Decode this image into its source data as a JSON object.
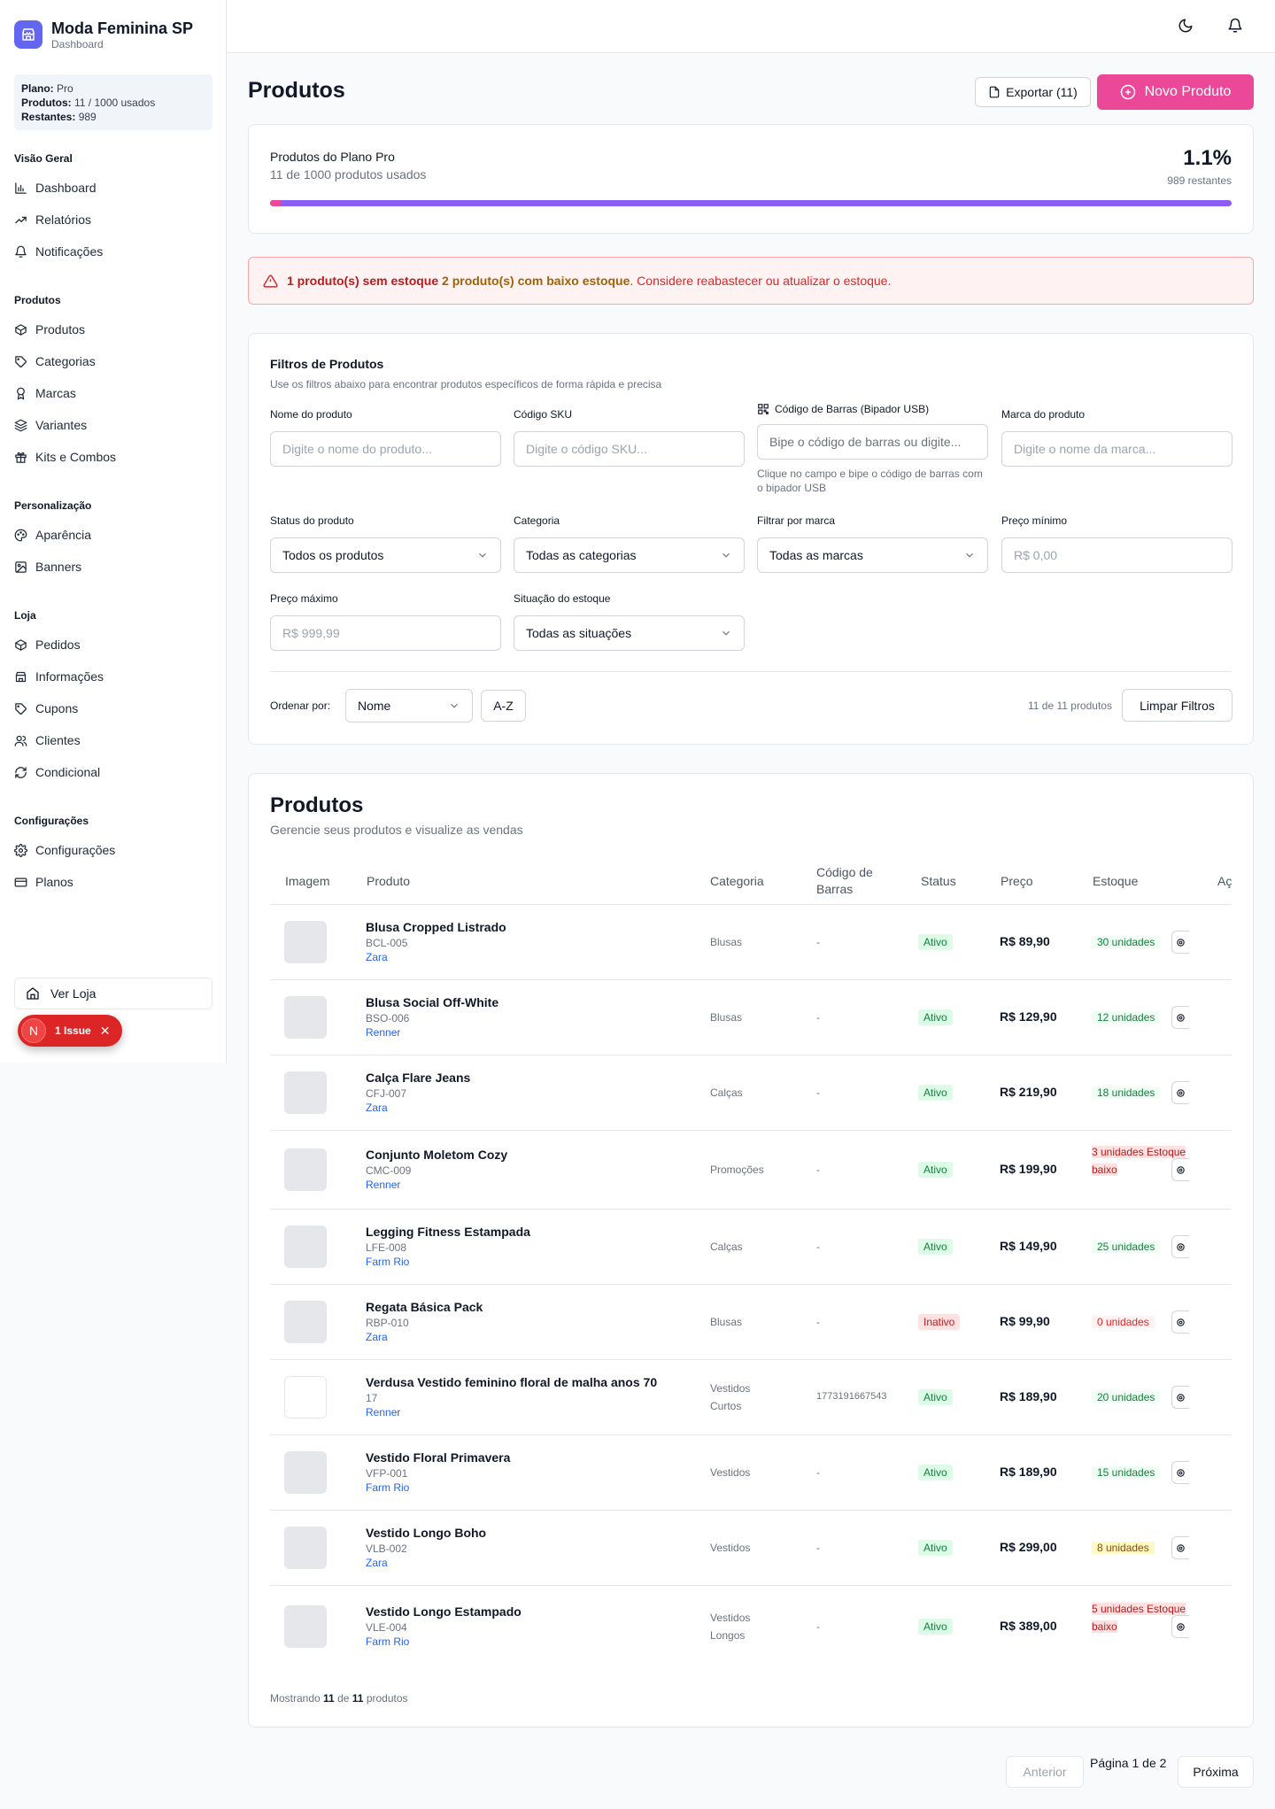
{
  "brand": {
    "name": "Moda Feminina SP",
    "subtitle": "Dashboard"
  },
  "plan": {
    "plan_label": "Plano:",
    "plan_value": "Pro",
    "products_label": "Produtos:",
    "products_value": "11 / 1000 usados",
    "remaining_label": "Restantes:",
    "remaining_value": "989"
  },
  "sidebar": {
    "sections": [
      {
        "title": "Visão Geral",
        "items": [
          {
            "label": "Dashboard",
            "icon": "bar-chart-icon"
          },
          {
            "label": "Relatórios",
            "icon": "trending-up-icon"
          },
          {
            "label": "Notificações",
            "icon": "bell-icon"
          }
        ]
      },
      {
        "title": "Produtos",
        "items": [
          {
            "label": "Produtos",
            "icon": "package-icon"
          },
          {
            "label": "Categorias",
            "icon": "tag-icon"
          },
          {
            "label": "Marcas",
            "icon": "award-icon"
          },
          {
            "label": "Variantes",
            "icon": "layers-icon"
          },
          {
            "label": "Kits e Combos",
            "icon": "gift-icon"
          }
        ]
      },
      {
        "title": "Personalização",
        "items": [
          {
            "label": "Aparência",
            "icon": "palette-icon"
          },
          {
            "label": "Banners",
            "icon": "image-icon"
          }
        ]
      },
      {
        "title": "Loja",
        "items": [
          {
            "label": "Pedidos",
            "icon": "package-icon"
          },
          {
            "label": "Informações",
            "icon": "store-icon"
          },
          {
            "label": "Cupons",
            "icon": "tag-icon"
          },
          {
            "label": "Clientes",
            "icon": "users-icon"
          },
          {
            "label": "Condicional",
            "icon": "refresh-icon"
          }
        ]
      },
      {
        "title": "Configurações",
        "items": [
          {
            "label": "Configurações",
            "icon": "gear-icon"
          },
          {
            "label": "Planos",
            "icon": "credit-card-icon"
          }
        ]
      }
    ],
    "view_store": "Ver Loja",
    "issue_badge": {
      "letter": "N",
      "label": "1 Issue"
    }
  },
  "header": {
    "title": "Produtos",
    "export_label": "Exportar (11)",
    "new_label": "Novo Produto"
  },
  "usage": {
    "title": "Produtos do Plano Pro",
    "subtitle": "11 de 1000 produtos usados",
    "percent": "1.1%",
    "percent_value": 0.011,
    "remaining": "989 restantes"
  },
  "alert": {
    "part1": "1 produto(s) sem estoque",
    "part2": "2 produto(s) com baixo estoque",
    "part3": ". Considere reabastecer ou atualizar o estoque."
  },
  "filters": {
    "title": "Filtros de Produtos",
    "subtitle": "Use os filtros abaixo para encontrar produtos específicos de forma rápida e precisa",
    "name_label": "Nome do produto",
    "name_placeholder": "Digite o nome do produto...",
    "sku_label": "Código SKU",
    "sku_placeholder": "Digite o código SKU...",
    "barcode_label": "Código de Barras (Bipador USB)",
    "barcode_placeholder": "Bipe o código de barras ou digite...",
    "barcode_help": "Clique no campo e bipe o código de barras com o bipador USB",
    "brand_label": "Marca do produto",
    "brand_placeholder": "Digite o nome da marca...",
    "status_label": "Status do produto",
    "status_value": "Todos os produtos",
    "category_label": "Categoria",
    "category_value": "Todas as categorias",
    "brand_filter_label": "Filtrar por marca",
    "brand_filter_value": "Todas as marcas",
    "min_price_label": "Preço mínimo",
    "min_price_placeholder": "R$ 0,00",
    "max_price_label": "Preço máximo",
    "max_price_placeholder": "R$ 999,99",
    "stock_label": "Situação do estoque",
    "stock_value": "Todas as situações",
    "sort_label": "Ordenar por:",
    "sort_value": "Nome",
    "order_value": "A-Z",
    "count": "11 de 11 produtos",
    "clear_label": "Limpar Filtros"
  },
  "table": {
    "title": "Produtos",
    "subtitle": "Gerencie seus produtos e visualize as vendas",
    "columns": {
      "image": "Imagem",
      "product": "Produto",
      "category": "Categoria",
      "barcode": "Código de Barras",
      "status": "Status",
      "price": "Preço",
      "stock": "Estoque",
      "actions": "Aç"
    },
    "rows": [
      {
        "name": "Blusa Cropped Listrado",
        "sku": "BCL-005",
        "brand": "Zara",
        "category": "Blusas",
        "barcode": "-",
        "status": "Ativo",
        "price": "R$ 89,90",
        "stock": "30 unidades",
        "stock_kind": "ok"
      },
      {
        "name": "Blusa Social Off-White",
        "sku": "BSO-006",
        "brand": "Renner",
        "category": "Blusas",
        "barcode": "-",
        "status": "Ativo",
        "price": "R$ 129,90",
        "stock": "12 unidades",
        "stock_kind": "ok"
      },
      {
        "name": "Calça Flare Jeans",
        "sku": "CFJ-007",
        "brand": "Zara",
        "category": "Calças",
        "barcode": "-",
        "status": "Ativo",
        "price": "R$ 219,90",
        "stock": "18 unidades",
        "stock_kind": "ok"
      },
      {
        "name": "Conjunto Moletom Cozy",
        "sku": "CMC-009",
        "brand": "Renner",
        "category": "Promoções",
        "barcode": "-",
        "status": "Ativo",
        "price": "R$ 199,90",
        "stock": "3 unidades Estoque baixo",
        "stock_kind": "low"
      },
      {
        "name": "Legging Fitness Estampada",
        "sku": "LFE-008",
        "brand": "Farm Rio",
        "category": "Calças",
        "barcode": "-",
        "status": "Ativo",
        "price": "R$ 149,90",
        "stock": "25 unidades",
        "stock_kind": "ok"
      },
      {
        "name": "Regata Básica Pack",
        "sku": "RBP-010",
        "brand": "Zara",
        "category": "Blusas",
        "barcode": "-",
        "status": "Inativo",
        "price": "R$ 99,90",
        "stock": "0 unidades",
        "stock_kind": "zero"
      },
      {
        "name": "Verdusa Vestido feminino floral de malha anos 70",
        "sku": "17",
        "brand": "Renner",
        "category": "Vestidos Curtos",
        "barcode": "1773191667543",
        "status": "Ativo",
        "price": "R$ 189,90",
        "stock": "20 unidades",
        "stock_kind": "ok"
      },
      {
        "name": "Vestido Floral Primavera",
        "sku": "VFP-001",
        "brand": "Farm Rio",
        "category": "Vestidos",
        "barcode": "-",
        "status": "Ativo",
        "price": "R$ 189,90",
        "stock": "15 unidades",
        "stock_kind": "ok"
      },
      {
        "name": "Vestido Longo Boho",
        "sku": "VLB-002",
        "brand": "Zara",
        "category": "Vestidos",
        "barcode": "-",
        "status": "Ativo",
        "price": "R$ 299,00",
        "stock": "8 unidades",
        "stock_kind": "warn"
      },
      {
        "name": "Vestido Longo Estampado",
        "sku": "VLE-004",
        "brand": "Farm Rio",
        "category": "Vestidos Longos",
        "barcode": "-",
        "status": "Ativo",
        "price": "R$ 389,00",
        "stock": "5 unidades Estoque baixo",
        "stock_kind": "low"
      }
    ],
    "footer_prefix": "Mostrando",
    "footer_shown": "11",
    "footer_mid": "de",
    "footer_total": "11",
    "footer_suffix": "produtos"
  },
  "pagination": {
    "prev": "Anterior",
    "info": "Página 1 de 2",
    "next": "Próxima"
  },
  "colors": {
    "accent": "#ec4899",
    "brand": "#6366f1",
    "progress": "#8b5cf6"
  }
}
